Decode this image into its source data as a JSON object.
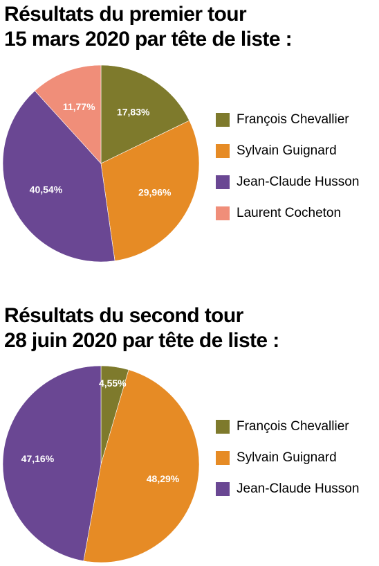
{
  "chart_data": [
    {
      "type": "pie",
      "title_lines": [
        "Résultats du premier tour",
        "15 mars 2020 par tête de liste :"
      ],
      "slices": [
        {
          "name": "François Chevallier",
          "value": 17.83,
          "label": "17,83%",
          "color": "#7e7a2c"
        },
        {
          "name": "Sylvain Guignard",
          "value": 29.96,
          "label": "29,96%",
          "color": "#e68b25"
        },
        {
          "name": "Jean-Claude Husson",
          "value": 40.54,
          "label": "40,54%",
          "color": "#6a4793"
        },
        {
          "name": "Laurent Cocheton",
          "value": 11.77,
          "label": "11,77%",
          "color": "#f08e79"
        }
      ],
      "legend_position": "right"
    },
    {
      "type": "pie",
      "title_lines": [
        "Résultats du second tour",
        "28 juin 2020 par tête de liste :"
      ],
      "slices": [
        {
          "name": "François Chevallier",
          "value": 4.55,
          "label": "4,55%",
          "color": "#7e7a2c"
        },
        {
          "name": "Sylvain Guignard",
          "value": 48.29,
          "label": "48,29%",
          "color": "#e68b25"
        },
        {
          "name": "Jean-Claude Husson",
          "value": 47.16,
          "label": "47,16%",
          "color": "#6a4793"
        }
      ],
      "legend_position": "right"
    }
  ]
}
